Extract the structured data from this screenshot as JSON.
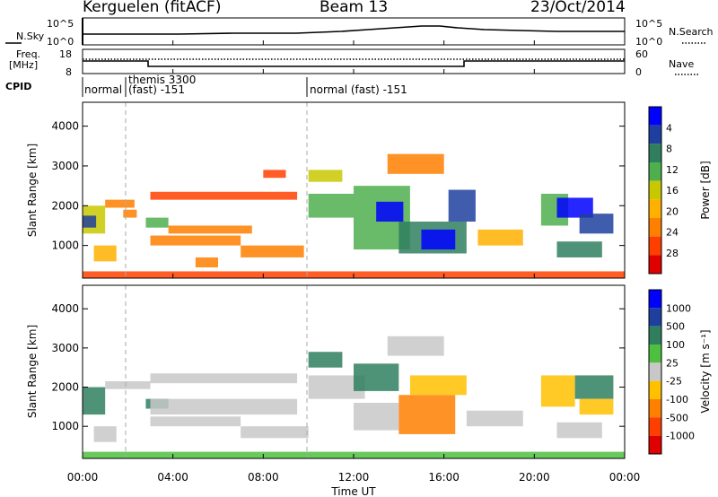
{
  "header": {
    "station": "Kerguelen (fitACF)",
    "beam": "Beam 13",
    "date": "23/Oct/2014"
  },
  "sky_panel": {
    "left_label": "N.Sky",
    "right_label": "N.Search",
    "left_ticks": [
      "10^5",
      "10^0"
    ],
    "right_ticks": [
      "10^5",
      "10^0"
    ]
  },
  "freq_panel": {
    "left_label_1": "Freq.",
    "left_label_2": "[MHz]",
    "right_label": "Nave",
    "left_ticks": [
      "18",
      "8"
    ],
    "right_ticks": [
      "60",
      "0"
    ]
  },
  "cpid": {
    "label": "CPID",
    "segments": [
      {
        "line1": "normal",
        "line2": ""
      },
      {
        "line1": "themis 3300",
        "line2": "(fast) -151"
      },
      {
        "line1": "",
        "line2": "normal (fast) -151"
      }
    ]
  },
  "time_axis": {
    "label": "Time UT",
    "ticks": [
      "00:00",
      "04:00",
      "08:00",
      "12:00",
      "16:00",
      "20:00",
      "00:00"
    ]
  },
  "colors": {
    "power_scale": [
      "#0000ff",
      "#1f3f9f",
      "#2f7f5f",
      "#4faf4f",
      "#c8c800",
      "#ffb000",
      "#ff7f00",
      "#ff3f00",
      "#e00000"
    ],
    "velocity_scale": [
      "#0000ff",
      "#1f3f9f",
      "#2f7f5f",
      "#4fbf3f",
      "#c8c8c8",
      "#ffc000",
      "#ff7f00",
      "#ff3f00",
      "#e00000"
    ]
  },
  "chart_data": [
    {
      "type": "heatmap",
      "title": "Power",
      "xlabel": "",
      "ylabel": "Slant Range [km]",
      "yticks": [
        "1000",
        "2000",
        "3000",
        "4000"
      ],
      "ylim": [
        180,
        4600
      ],
      "xlim": [
        0,
        24
      ],
      "colorbar": {
        "label": "Power [dB]",
        "ticks": [
          "4",
          "8",
          "12",
          "16",
          "20",
          "24",
          "28"
        ]
      },
      "regions": [
        {
          "t0": 0.0,
          "t1": 1.0,
          "r0": 1300,
          "r1": 2000,
          "level": 4
        },
        {
          "t0": 0.0,
          "t1": 0.6,
          "r0": 1450,
          "r1": 1750,
          "level": 7
        },
        {
          "t0": 0.5,
          "t1": 1.5,
          "r0": 600,
          "r1": 1000,
          "level": 3
        },
        {
          "t0": 1.0,
          "t1": 2.3,
          "r0": 1950,
          "r1": 2150,
          "level": 2
        },
        {
          "t0": 1.8,
          "t1": 2.4,
          "r0": 1700,
          "r1": 1900,
          "level": 2
        },
        {
          "t0": 2.8,
          "t1": 3.8,
          "r0": 1450,
          "r1": 1700,
          "level": 5
        },
        {
          "t0": 3.0,
          "t1": 9.5,
          "r0": 2150,
          "r1": 2350,
          "level": 1
        },
        {
          "t0": 3.0,
          "t1": 7.0,
          "r0": 1000,
          "r1": 1250,
          "level": 2
        },
        {
          "t0": 3.8,
          "t1": 7.5,
          "r0": 1300,
          "r1": 1500,
          "level": 2
        },
        {
          "t0": 7.0,
          "t1": 9.8,
          "r0": 700,
          "r1": 1000,
          "level": 2
        },
        {
          "t0": 5.0,
          "t1": 6.0,
          "r0": 450,
          "r1": 700,
          "level": 2
        },
        {
          "t0": 8.0,
          "t1": 9.0,
          "r0": 2700,
          "r1": 2900,
          "level": 1
        },
        {
          "t0": 10.0,
          "t1": 11.5,
          "r0": 2600,
          "r1": 2900,
          "level": 4
        },
        {
          "t0": 10.0,
          "t1": 12.0,
          "r0": 1700,
          "r1": 2300,
          "level": 5
        },
        {
          "t0": 12.0,
          "t1": 14.5,
          "r0": 900,
          "r1": 2500,
          "level": 5
        },
        {
          "t0": 13.0,
          "t1": 14.2,
          "r0": 1600,
          "r1": 2100,
          "level": 8
        },
        {
          "t0": 14.0,
          "t1": 17.0,
          "r0": 800,
          "r1": 1600,
          "level": 6
        },
        {
          "t0": 15.0,
          "t1": 16.5,
          "r0": 900,
          "r1": 1400,
          "level": 8
        },
        {
          "t0": 16.2,
          "t1": 17.4,
          "r0": 1600,
          "r1": 2400,
          "level": 7
        },
        {
          "t0": 13.5,
          "t1": 16.0,
          "r0": 2800,
          "r1": 3300,
          "level": 2
        },
        {
          "t0": 17.5,
          "t1": 19.5,
          "r0": 1000,
          "r1": 1400,
          "level": 3
        },
        {
          "t0": 20.3,
          "t1": 21.5,
          "r0": 1500,
          "r1": 2300,
          "level": 5
        },
        {
          "t0": 21.0,
          "t1": 22.6,
          "r0": 1700,
          "r1": 2200,
          "level": 8
        },
        {
          "t0": 22.0,
          "t1": 23.5,
          "r0": 1300,
          "r1": 1800,
          "level": 7
        },
        {
          "t0": 21.0,
          "t1": 23.0,
          "r0": 700,
          "r1": 1100,
          "level": 6
        },
        {
          "t0": 0.0,
          "t1": 24.0,
          "r0": 180,
          "r1": 350,
          "level": 1
        }
      ]
    },
    {
      "type": "heatmap",
      "title": "Velocity",
      "xlabel": "Time UT",
      "ylabel": "Slant Range [km]",
      "yticks": [
        "1000",
        "2000",
        "3000",
        "4000"
      ],
      "ylim": [
        180,
        4600
      ],
      "xlim": [
        0,
        24
      ],
      "colorbar": {
        "label": "Velocity [m s⁻¹]",
        "ticks": [
          "1000",
          "500",
          "100",
          "25",
          "-25",
          "-100",
          "-500",
          "-1000"
        ]
      },
      "regions": [
        {
          "t0": 0.0,
          "t1": 1.0,
          "r0": 1300,
          "r1": 2000,
          "level": 6
        },
        {
          "t0": 0.5,
          "t1": 1.5,
          "r0": 600,
          "r1": 1000,
          "level": 4
        },
        {
          "t0": 1.0,
          "t1": 3.0,
          "r0": 1950,
          "r1": 2150,
          "level": 4
        },
        {
          "t0": 2.8,
          "t1": 3.8,
          "r0": 1450,
          "r1": 1700,
          "level": 6
        },
        {
          "t0": 3.0,
          "t1": 9.5,
          "r0": 1300,
          "r1": 1700,
          "level": 4
        },
        {
          "t0": 3.0,
          "t1": 9.5,
          "r0": 2100,
          "r1": 2350,
          "level": 4
        },
        {
          "t0": 3.0,
          "t1": 7.0,
          "r0": 1000,
          "r1": 1250,
          "level": 4
        },
        {
          "t0": 7.0,
          "t1": 10.0,
          "r0": 700,
          "r1": 1000,
          "level": 4
        },
        {
          "t0": 10.0,
          "t1": 11.5,
          "r0": 2500,
          "r1": 2900,
          "level": 6
        },
        {
          "t0": 10.0,
          "t1": 12.5,
          "r0": 1700,
          "r1": 2300,
          "level": 4
        },
        {
          "t0": 12.0,
          "t1": 14.0,
          "r0": 1900,
          "r1": 2600,
          "level": 6
        },
        {
          "t0": 12.0,
          "t1": 14.0,
          "r0": 900,
          "r1": 1600,
          "level": 4
        },
        {
          "t0": 14.0,
          "t1": 16.5,
          "r0": 800,
          "r1": 1800,
          "level": 2
        },
        {
          "t0": 14.5,
          "t1": 17.0,
          "r0": 1800,
          "r1": 2300,
          "level": 3
        },
        {
          "t0": 13.5,
          "t1": 16.0,
          "r0": 2800,
          "r1": 3300,
          "level": 4
        },
        {
          "t0": 17.0,
          "t1": 19.5,
          "r0": 1000,
          "r1": 1400,
          "level": 4
        },
        {
          "t0": 20.3,
          "t1": 21.8,
          "r0": 1500,
          "r1": 2300,
          "level": 3
        },
        {
          "t0": 21.8,
          "t1": 23.5,
          "r0": 1700,
          "r1": 2300,
          "level": 6
        },
        {
          "t0": 22.0,
          "t1": 23.5,
          "r0": 1300,
          "r1": 1700,
          "level": 3
        },
        {
          "t0": 21.0,
          "t1": 23.0,
          "r0": 700,
          "r1": 1100,
          "level": 4
        },
        {
          "t0": 0.0,
          "t1": 24.0,
          "r0": 180,
          "r1": 350,
          "level": 5
        }
      ]
    }
  ]
}
